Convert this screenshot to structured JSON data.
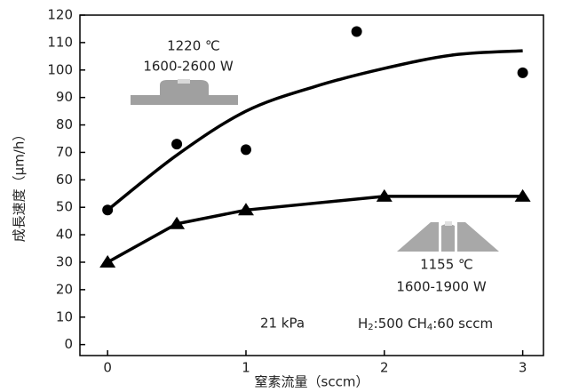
{
  "chart_data": {
    "type": "scatter",
    "xlabel": "窒素流量（sccm）",
    "ylabel": "成長速度（μm/h）",
    "xlim": [
      -0.2,
      3.15
    ],
    "xticks": [
      0,
      1,
      2,
      3
    ],
    "ylim": [
      -4,
      120
    ],
    "yticks": [
      0,
      10,
      20,
      30,
      40,
      50,
      60,
      70,
      80,
      90,
      100,
      110,
      120
    ],
    "series": [
      {
        "marker": "circle",
        "color": "#000000",
        "x": [
          0,
          0.5,
          1,
          1.8,
          3
        ],
        "values": [
          49,
          73,
          71,
          114,
          99
        ]
      },
      {
        "marker": "none",
        "line": true,
        "color": "#000000",
        "x": [
          0,
          0.5,
          1,
          1.5,
          2,
          2.5,
          3
        ],
        "values": [
          49,
          69,
          85,
          94,
          100.6,
          105.5,
          107
        ]
      },
      {
        "marker": "triangle",
        "line": true,
        "color": "#000000",
        "x": [
          0,
          0.5,
          1,
          2,
          3
        ],
        "values": [
          30,
          44,
          49,
          54,
          54
        ]
      }
    ],
    "annotations": [
      "1220 ℃",
      "1600-2600 W",
      "1155 ℃",
      "1600-1900 W",
      "21 kPa"
    ],
    "gas_label": [
      "H",
      "2",
      ":500  CH",
      "4",
      ":60 sccm"
    ]
  }
}
